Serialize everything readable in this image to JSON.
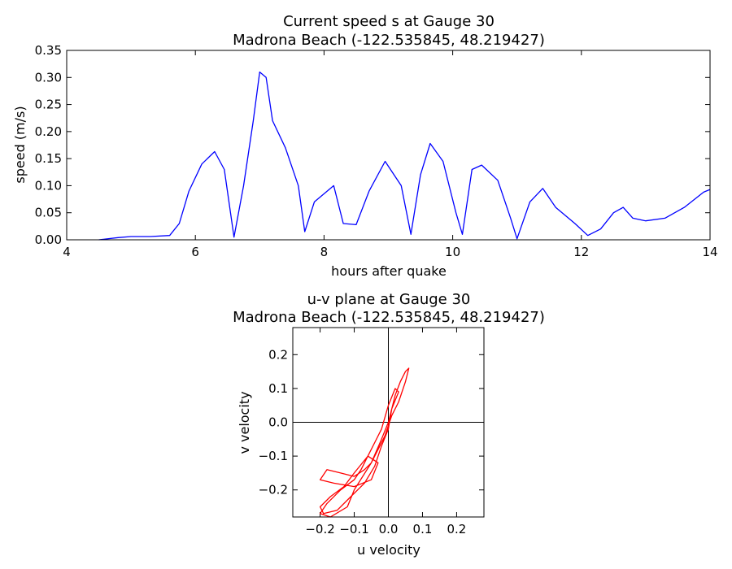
{
  "chart_data": [
    {
      "type": "line",
      "title": "Current speed s at Gauge 30",
      "subtitle": "Madrona Beach  (-122.535845, 48.219427)",
      "xlabel": "hours after quake",
      "ylabel": "speed (m/s)",
      "xlim": [
        4,
        14
      ],
      "ylim": [
        0,
        0.35
      ],
      "xticks": [
        4,
        6,
        8,
        10,
        12,
        14
      ],
      "xtick_labels": [
        "4",
        "6",
        "8",
        "10",
        "12",
        "14"
      ],
      "yticks": [
        0,
        0.05,
        0.1,
        0.15,
        0.2,
        0.25,
        0.3,
        0.35
      ],
      "ytick_labels": [
        "0.00",
        "0.05",
        "0.10",
        "0.15",
        "0.20",
        "0.25",
        "0.30",
        "0.35"
      ],
      "grid": false,
      "color": "#0000ff",
      "series": [
        {
          "x": [
            4.5,
            4.8,
            5.0,
            5.3,
            5.6,
            5.75,
            5.9,
            6.1,
            6.3,
            6.45,
            6.6,
            6.75,
            6.9,
            7.0,
            7.1,
            7.2,
            7.4,
            7.6,
            7.7,
            7.85,
            8.0,
            8.15,
            8.3,
            8.5,
            8.7,
            8.95,
            9.2,
            9.35,
            9.5,
            9.65,
            9.85,
            10.05,
            10.15,
            10.3,
            10.45,
            10.7,
            10.9,
            11.0,
            11.2,
            11.4,
            11.6,
            11.9,
            12.1,
            12.3,
            12.5,
            12.65,
            12.8,
            13.0,
            13.3,
            13.6,
            13.9,
            14.0
          ],
          "y": [
            0.0,
            0.004,
            0.006,
            0.006,
            0.008,
            0.03,
            0.09,
            0.14,
            0.163,
            0.13,
            0.005,
            0.1,
            0.22,
            0.31,
            0.3,
            0.22,
            0.17,
            0.1,
            0.015,
            0.07,
            0.085,
            0.1,
            0.03,
            0.028,
            0.09,
            0.145,
            0.1,
            0.01,
            0.12,
            0.178,
            0.145,
            0.05,
            0.01,
            0.13,
            0.138,
            0.11,
            0.04,
            0.002,
            0.07,
            0.095,
            0.06,
            0.03,
            0.008,
            0.02,
            0.05,
            0.06,
            0.04,
            0.035,
            0.04,
            0.06,
            0.088,
            0.093
          ]
        }
      ]
    },
    {
      "type": "line",
      "title": "u-v plane at Gauge 30",
      "subtitle": "Madrona Beach  (-122.535845, 48.219427)",
      "xlabel": "u velocity",
      "ylabel": "v velocity",
      "xlim": [
        -0.28,
        0.28
      ],
      "ylim": [
        -0.28,
        0.28
      ],
      "xticks": [
        -0.2,
        -0.1,
        0.0,
        0.1,
        0.2
      ],
      "xtick_labels": [
        "−0.2",
        "−0.1",
        "0.0",
        "0.1",
        "0.2"
      ],
      "yticks": [
        -0.2,
        -0.1,
        0.0,
        0.1,
        0.2
      ],
      "ytick_labels": [
        "−0.2",
        "−0.1",
        "0.0",
        "0.1",
        "0.2"
      ],
      "grid": false,
      "axis_lines_at_zero": true,
      "color": "#ff0000",
      "series": [
        {
          "x": [
            0.0,
            0.01,
            0.02,
            0.035,
            0.05,
            0.06,
            0.05,
            0.03,
            0.01,
            -0.01,
            -0.03,
            -0.05,
            -0.07,
            -0.1,
            -0.14,
            -0.18,
            -0.2,
            -0.16,
            -0.1,
            -0.05,
            -0.03,
            -0.06,
            -0.1,
            -0.13,
            -0.17,
            -0.2,
            -0.19,
            -0.15,
            -0.11,
            -0.07,
            -0.04,
            -0.02,
            0.0,
            0.01,
            0.03,
            0.02,
            0.0,
            -0.02,
            -0.04,
            -0.06,
            -0.08,
            -0.1,
            -0.14,
            -0.18,
            -0.2,
            -0.17,
            -0.12,
            -0.1,
            -0.05,
            -0.02,
            0.0
          ],
          "y": [
            0.0,
            0.04,
            0.08,
            0.12,
            0.15,
            0.16,
            0.12,
            0.06,
            0.02,
            -0.04,
            -0.08,
            -0.12,
            -0.14,
            -0.16,
            -0.15,
            -0.14,
            -0.17,
            -0.18,
            -0.19,
            -0.17,
            -0.12,
            -0.1,
            -0.15,
            -0.19,
            -0.22,
            -0.25,
            -0.27,
            -0.26,
            -0.22,
            -0.18,
            -0.13,
            -0.07,
            -0.02,
            0.04,
            0.09,
            0.1,
            0.05,
            -0.02,
            -0.06,
            -0.1,
            -0.14,
            -0.17,
            -0.2,
            -0.24,
            -0.27,
            -0.28,
            -0.25,
            -0.2,
            -0.12,
            -0.05,
            0.0
          ]
        }
      ]
    }
  ]
}
